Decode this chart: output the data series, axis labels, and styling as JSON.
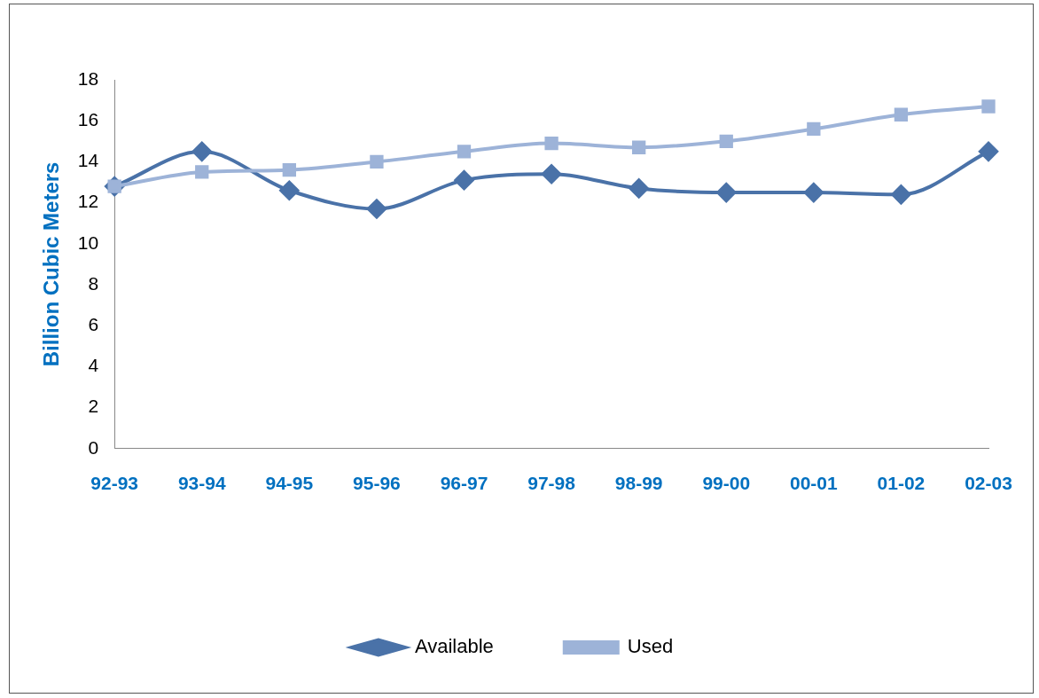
{
  "chart_data": {
    "type": "line",
    "ylabel": "Billion Cubic Meters",
    "categories": [
      "92-93",
      "93-94",
      "94-95",
      "95-96",
      "96-97",
      "97-98",
      "98-99",
      "99-00",
      "00-01",
      "01-02",
      "02-03"
    ],
    "series": [
      {
        "name": "Available",
        "color": "#4a72a8",
        "marker": "diamond",
        "values": [
          12.8,
          14.5,
          12.6,
          11.7,
          13.1,
          13.4,
          12.7,
          12.5,
          12.5,
          12.4,
          14.5
        ]
      },
      {
        "name": "Used",
        "color": "#9db3d8",
        "marker": "square",
        "values": [
          12.8,
          13.5,
          13.6,
          14.0,
          14.5,
          14.9,
          14.7,
          15.0,
          15.6,
          16.3,
          16.7
        ]
      }
    ],
    "ylim": [
      0,
      18
    ],
    "yticks": [
      0,
      2,
      4,
      6,
      8,
      10,
      12,
      14,
      16,
      18
    ],
    "grid": false,
    "legend": "bottom"
  }
}
